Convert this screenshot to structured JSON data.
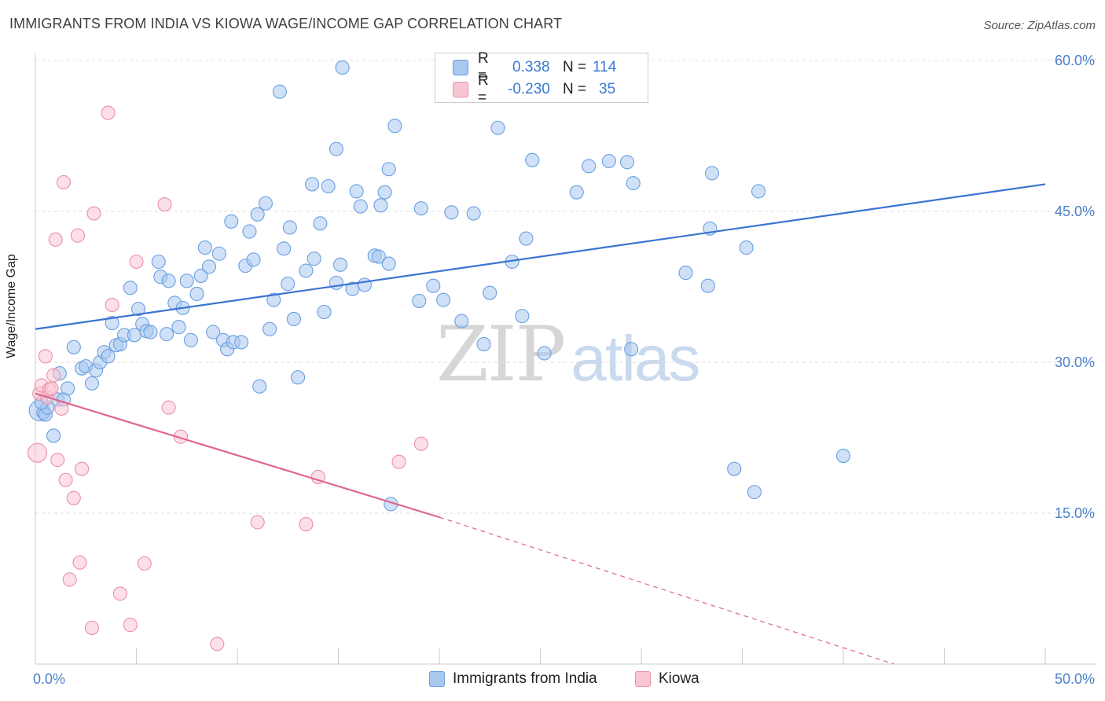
{
  "title": "IMMIGRANTS FROM INDIA VS KIOWA WAGE/INCOME GAP CORRELATION CHART",
  "source": "Source: ZipAtlas.com",
  "watermark": {
    "zip": "ZIP",
    "atlas": "atlas"
  },
  "legend_stats": [
    {
      "r_label": "R =",
      "r_value": "0.338",
      "n_label": "N =",
      "n_value": "114",
      "color": "#a9c8f0",
      "border": "#6a9fe0"
    },
    {
      "r_label": "R =",
      "r_value": "-0.230",
      "n_label": "N =",
      "n_value": "35",
      "color": "#f9c5d3",
      "border": "#ea90aa"
    }
  ],
  "chart_data": {
    "type": "scatter",
    "title": "IMMIGRANTS FROM INDIA VS KIOWA WAGE/INCOME GAP CORRELATION CHART",
    "xlabel": "",
    "ylabel": "Wage/Income Gap",
    "xlim": [
      0,
      50
    ],
    "ylim": [
      0,
      62
    ],
    "x_tick_labels": [
      "0.0%",
      "50.0%"
    ],
    "y_tick_labels": [
      "15.0%",
      "30.0%",
      "45.0%",
      "60.0%"
    ],
    "y_ticks": [
      15,
      30,
      45,
      60
    ],
    "grid": true,
    "series": [
      {
        "name": "Immigrants from India",
        "color": "#a9c8f0",
        "stroke": "#6a9fe0",
        "trend": {
          "x": [
            0,
            50
          ],
          "y": [
            33.3,
            47.7
          ],
          "color": "#3b74d1"
        },
        "points": [
          [
            0.2,
            25.2,
            3
          ],
          [
            0.4,
            25.0,
            1
          ],
          [
            0.5,
            24.8,
            1
          ],
          [
            0.6,
            25.5,
            1
          ],
          [
            0.9,
            22.7,
            1
          ],
          [
            1.1,
            26.3,
            1
          ],
          [
            1.2,
            28.9,
            1
          ],
          [
            1.4,
            26.3,
            1
          ],
          [
            1.6,
            27.4,
            1
          ],
          [
            1.9,
            31.5,
            1
          ],
          [
            2.3,
            29.4,
            1
          ],
          [
            2.5,
            29.6,
            1
          ],
          [
            2.8,
            27.9,
            1
          ],
          [
            3.0,
            29.2,
            1
          ],
          [
            3.2,
            30.0,
            1
          ],
          [
            3.4,
            31.0,
            1
          ],
          [
            3.6,
            30.6,
            1
          ],
          [
            3.8,
            33.9,
            1
          ],
          [
            4.0,
            31.7,
            1
          ],
          [
            4.2,
            31.8,
            1
          ],
          [
            4.4,
            32.7,
            1
          ],
          [
            4.7,
            37.4,
            1
          ],
          [
            4.9,
            32.7,
            1
          ],
          [
            5.1,
            35.3,
            1
          ],
          [
            5.3,
            33.8,
            1
          ],
          [
            5.5,
            33.1,
            1
          ],
          [
            5.7,
            33.0,
            1
          ],
          [
            6.1,
            40.0,
            1
          ],
          [
            6.2,
            38.5,
            1
          ],
          [
            6.5,
            32.8,
            1
          ],
          [
            6.6,
            38.1,
            1
          ],
          [
            6.9,
            35.9,
            1
          ],
          [
            7.1,
            33.5,
            1
          ],
          [
            7.3,
            35.4,
            1
          ],
          [
            7.5,
            38.1,
            1
          ],
          [
            7.7,
            32.2,
            1
          ],
          [
            8.0,
            36.8,
            1
          ],
          [
            8.2,
            38.6,
            1
          ],
          [
            8.4,
            41.4,
            1
          ],
          [
            8.6,
            39.5,
            1
          ],
          [
            8.8,
            33.0,
            1
          ],
          [
            9.1,
            40.8,
            1
          ],
          [
            9.3,
            32.2,
            1
          ],
          [
            9.5,
            31.3,
            1
          ],
          [
            9.8,
            32.0,
            1
          ],
          [
            9.7,
            44.0,
            1
          ],
          [
            10.2,
            32.0,
            1
          ],
          [
            10.4,
            39.6,
            1
          ],
          [
            10.6,
            43.0,
            1
          ],
          [
            10.8,
            40.2,
            1
          ],
          [
            11.0,
            44.7,
            1
          ],
          [
            11.1,
            27.6,
            1
          ],
          [
            11.4,
            45.8,
            1
          ],
          [
            11.6,
            33.3,
            1
          ],
          [
            11.8,
            36.2,
            1
          ],
          [
            12.1,
            56.9,
            1
          ],
          [
            12.3,
            41.3,
            1
          ],
          [
            12.5,
            37.8,
            1
          ],
          [
            12.6,
            43.4,
            1
          ],
          [
            12.8,
            34.3,
            1
          ],
          [
            13.0,
            28.5,
            1
          ],
          [
            13.4,
            39.1,
            1
          ],
          [
            13.7,
            47.7,
            1
          ],
          [
            13.8,
            40.3,
            1
          ],
          [
            14.1,
            43.8,
            1
          ],
          [
            14.3,
            35.0,
            1
          ],
          [
            14.5,
            47.5,
            1
          ],
          [
            14.9,
            51.2,
            1
          ],
          [
            14.9,
            37.9,
            1
          ],
          [
            15.1,
            39.7,
            1
          ],
          [
            15.7,
            37.3,
            1
          ],
          [
            15.9,
            47.0,
            1
          ],
          [
            16.1,
            45.5,
            1
          ],
          [
            16.3,
            37.7,
            1
          ],
          [
            16.8,
            40.6,
            1
          ],
          [
            17.0,
            40.5,
            1
          ],
          [
            17.1,
            45.6,
            1
          ],
          [
            17.3,
            46.9,
            1
          ],
          [
            17.5,
            49.2,
            1
          ],
          [
            17.5,
            39.8,
            1
          ],
          [
            15.2,
            59.3,
            1
          ],
          [
            17.6,
            15.9,
            1
          ],
          [
            17.8,
            53.5,
            1
          ],
          [
            19.0,
            36.1,
            1
          ],
          [
            19.1,
            45.3,
            1
          ],
          [
            19.7,
            37.6,
            1
          ],
          [
            20.2,
            36.2,
            1
          ],
          [
            20.6,
            44.9,
            1
          ],
          [
            21.1,
            34.1,
            1
          ],
          [
            21.7,
            44.8,
            1
          ],
          [
            22.2,
            31.8,
            1
          ],
          [
            22.5,
            36.9,
            1
          ],
          [
            22.9,
            53.3,
            1
          ],
          [
            23.6,
            40.0,
            1
          ],
          [
            24.1,
            34.6,
            1
          ],
          [
            24.3,
            42.3,
            1
          ],
          [
            24.6,
            50.1,
            1
          ],
          [
            25.2,
            30.9,
            1
          ],
          [
            26.8,
            46.9,
            1
          ],
          [
            27.4,
            49.5,
            1
          ],
          [
            28.4,
            50.0,
            1
          ],
          [
            29.3,
            49.9,
            1
          ],
          [
            29.5,
            31.3,
            1
          ],
          [
            29.6,
            47.8,
            1
          ],
          [
            32.2,
            38.9,
            1
          ],
          [
            33.3,
            37.6,
            1
          ],
          [
            33.4,
            43.3,
            1
          ],
          [
            33.5,
            48.8,
            1
          ],
          [
            34.6,
            19.4,
            1
          ],
          [
            35.2,
            41.4,
            1
          ],
          [
            35.6,
            17.1,
            1
          ],
          [
            35.8,
            47.0,
            1
          ],
          [
            40.0,
            20.7,
            1
          ],
          [
            0.3,
            26.0,
            1
          ]
        ]
      },
      {
        "name": "Kiowa",
        "color": "#f9c5d3",
        "stroke": "#ea90aa",
        "trend": {
          "x": [
            0,
            20
          ],
          "y": [
            26.9,
            14.6
          ],
          "dash_to": [
            42.5,
            0.0
          ],
          "color": "#e0658f"
        },
        "points": [
          [
            0.1,
            21.0,
            2
          ],
          [
            0.2,
            26.9,
            1
          ],
          [
            0.3,
            27.7,
            1
          ],
          [
            0.5,
            30.6,
            1
          ],
          [
            0.6,
            26.5,
            1
          ],
          [
            0.7,
            27.3,
            1
          ],
          [
            0.8,
            27.4,
            1
          ],
          [
            0.9,
            28.7,
            1
          ],
          [
            1.0,
            42.2,
            1
          ],
          [
            1.1,
            20.3,
            1
          ],
          [
            1.3,
            25.4,
            1
          ],
          [
            1.4,
            47.9,
            1
          ],
          [
            1.5,
            18.3,
            1
          ],
          [
            1.7,
            8.4,
            1
          ],
          [
            1.9,
            16.5,
            1
          ],
          [
            2.1,
            42.6,
            1
          ],
          [
            2.2,
            10.1,
            1
          ],
          [
            2.3,
            19.4,
            1
          ],
          [
            2.8,
            3.6,
            1
          ],
          [
            2.9,
            44.8,
            1
          ],
          [
            3.6,
            54.8,
            1
          ],
          [
            3.8,
            35.7,
            1
          ],
          [
            4.2,
            7.0,
            1
          ],
          [
            4.7,
            3.9,
            1
          ],
          [
            5.0,
            40.0,
            1
          ],
          [
            5.4,
            10.0,
            1
          ],
          [
            6.4,
            45.7,
            1
          ],
          [
            6.6,
            25.5,
            1
          ],
          [
            7.2,
            22.6,
            1
          ],
          [
            9.0,
            2.0,
            1
          ],
          [
            11.0,
            14.1,
            1
          ],
          [
            13.4,
            13.9,
            1
          ],
          [
            14.0,
            18.6,
            1
          ],
          [
            18.0,
            20.1,
            1
          ],
          [
            19.1,
            21.9,
            1
          ]
        ]
      }
    ]
  },
  "bottom_legend": [
    {
      "label": "Immigrants from India",
      "color": "#a9c8f0",
      "border": "#6a9fe0"
    },
    {
      "label": "Kiowa",
      "color": "#f9c5d3",
      "border": "#ea90aa"
    }
  ]
}
